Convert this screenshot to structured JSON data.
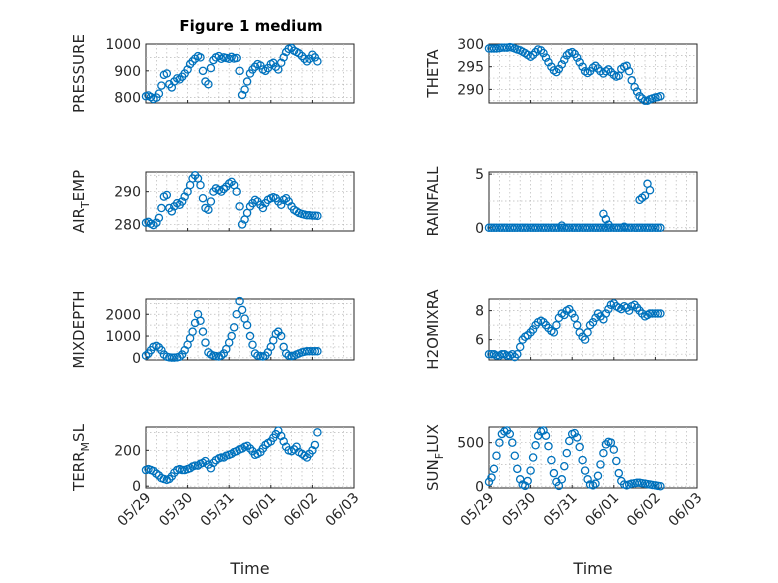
{
  "figure": {
    "title": "Figure 1 medium"
  },
  "chart_data": [
    {
      "type": "scatter",
      "title": "Figure 1 medium",
      "ylabel": "PRESSURE",
      "xlim": [
        0,
        5
      ],
      "ylim": [
        780,
        1000
      ],
      "yticks": [
        800,
        900,
        1000
      ],
      "xticks": [
        0,
        1,
        2,
        3,
        4,
        5
      ],
      "xticklabels": [
        "05/29",
        "05/30",
        "05/31",
        "06/01",
        "06/02",
        "06/03"
      ],
      "show_xticklabels": false,
      "grid": true,
      "color": "#0072bd",
      "x": [
        0.0,
        0.06,
        0.12,
        0.18,
        0.25,
        0.31,
        0.37,
        0.43,
        0.5,
        0.56,
        0.62,
        0.68,
        0.75,
        0.81,
        0.87,
        0.93,
        1.0,
        1.06,
        1.12,
        1.18,
        1.25,
        1.31,
        1.37,
        1.43,
        1.5,
        1.56,
        1.62,
        1.68,
        1.75,
        1.81,
        1.87,
        1.93,
        2.0,
        2.06,
        2.12,
        2.18,
        2.25,
        2.31,
        2.37,
        2.43,
        2.5,
        2.56,
        2.62,
        2.68,
        2.75,
        2.81,
        2.87,
        2.93,
        3.0,
        3.06,
        3.12,
        3.18,
        3.25,
        3.31,
        3.37,
        3.43,
        3.5,
        3.56,
        3.62,
        3.68,
        3.75,
        3.81,
        3.87,
        3.93,
        4.0,
        4.06,
        4.12
      ],
      "y": [
        805,
        808,
        802,
        795,
        800,
        815,
        845,
        885,
        890,
        850,
        838,
        860,
        872,
        868,
        878,
        890,
        905,
        925,
        935,
        945,
        955,
        950,
        900,
        860,
        850,
        910,
        940,
        950,
        955,
        945,
        950,
        948,
        945,
        952,
        946,
        948,
        900,
        810,
        830,
        860,
        890,
        905,
        915,
        925,
        920,
        905,
        900,
        910,
        925,
        930,
        915,
        905,
        930,
        950,
        970,
        982,
        985,
        975,
        970,
        965,
        955,
        945,
        935,
        945,
        960,
        950,
        935
      ]
    },
    {
      "type": "scatter",
      "ylabel": "THETA",
      "xlim": [
        0,
        5
      ],
      "ylim": [
        287,
        300
      ],
      "yticks": [
        290,
        295,
        300
      ],
      "xticks": [
        0,
        1,
        2,
        3,
        4,
        5
      ],
      "xticklabels": [
        "05/29",
        "05/30",
        "05/31",
        "06/01",
        "06/02",
        "06/03"
      ],
      "show_xticklabels": false,
      "grid": true,
      "color": "#0072bd",
      "x": [
        0.0,
        0.06,
        0.12,
        0.18,
        0.25,
        0.31,
        0.37,
        0.43,
        0.5,
        0.56,
        0.62,
        0.68,
        0.75,
        0.81,
        0.87,
        0.93,
        1.0,
        1.06,
        1.12,
        1.18,
        1.25,
        1.31,
        1.37,
        1.43,
        1.5,
        1.56,
        1.62,
        1.68,
        1.75,
        1.81,
        1.87,
        1.93,
        2.0,
        2.06,
        2.12,
        2.18,
        2.25,
        2.31,
        2.37,
        2.43,
        2.5,
        2.56,
        2.62,
        2.68,
        2.75,
        2.81,
        2.87,
        2.93,
        3.0,
        3.06,
        3.12,
        3.18,
        3.25,
        3.31,
        3.37,
        3.43,
        3.5,
        3.56,
        3.62,
        3.68,
        3.75,
        3.81,
        3.87,
        3.93,
        4.0,
        4.06,
        4.12
      ],
      "y": [
        299.0,
        299.0,
        299.0,
        299.0,
        299.1,
        299.2,
        299.2,
        299.2,
        299.3,
        299.2,
        299.0,
        298.8,
        298.6,
        298.3,
        298.0,
        297.6,
        297.2,
        297.6,
        298.2,
        298.8,
        298.6,
        298.0,
        297.0,
        296.0,
        295.0,
        294.2,
        293.8,
        294.5,
        295.5,
        296.5,
        297.5,
        298.0,
        298.2,
        297.8,
        297.0,
        296.0,
        295.0,
        294.0,
        293.6,
        294.0,
        294.8,
        295.2,
        294.6,
        294.0,
        293.5,
        294.0,
        294.4,
        293.8,
        293.2,
        292.8,
        293.0,
        294.5,
        295.0,
        295.2,
        294.0,
        292.0,
        290.5,
        289.5,
        288.5,
        288.0,
        287.5,
        287.5,
        287.8,
        288.0,
        288.2,
        288.3,
        288.5
      ]
    },
    {
      "type": "scatter",
      "ylabel": "AIR_TEMP",
      "xlim": [
        0,
        5
      ],
      "ylim": [
        278,
        296
      ],
      "yticks": [
        280,
        290
      ],
      "xticks": [
        0,
        1,
        2,
        3,
        4,
        5
      ],
      "xticklabels": [
        "05/29",
        "05/30",
        "05/31",
        "06/01",
        "06/02",
        "06/03"
      ],
      "show_xticklabels": false,
      "grid": true,
      "color": "#0072bd",
      "x": [
        0.0,
        0.06,
        0.12,
        0.18,
        0.25,
        0.31,
        0.37,
        0.43,
        0.5,
        0.56,
        0.62,
        0.68,
        0.75,
        0.81,
        0.87,
        0.93,
        1.0,
        1.06,
        1.12,
        1.18,
        1.25,
        1.31,
        1.37,
        1.43,
        1.5,
        1.56,
        1.62,
        1.68,
        1.75,
        1.81,
        1.87,
        1.93,
        2.0,
        2.06,
        2.12,
        2.18,
        2.25,
        2.31,
        2.37,
        2.43,
        2.5,
        2.56,
        2.62,
        2.68,
        2.75,
        2.81,
        2.87,
        2.93,
        3.0,
        3.06,
        3.12,
        3.18,
        3.25,
        3.31,
        3.37,
        3.43,
        3.5,
        3.56,
        3.62,
        3.68,
        3.75,
        3.81,
        3.87,
        3.93,
        4.0,
        4.06,
        4.12
      ],
      "y": [
        280.5,
        280.8,
        280.2,
        279.8,
        280.5,
        282.0,
        285.0,
        288.5,
        289.0,
        285.0,
        284.0,
        285.5,
        286.5,
        286.0,
        287.0,
        288.5,
        290.0,
        292.0,
        294.0,
        295.0,
        294.0,
        292.0,
        288.0,
        285.0,
        284.5,
        287.0,
        290.0,
        291.0,
        290.5,
        290.0,
        290.8,
        291.5,
        292.5,
        293.0,
        292.0,
        290.0,
        285.5,
        280.0,
        281.5,
        283.5,
        285.5,
        286.5,
        287.5,
        287.0,
        286.0,
        285.0,
        286.5,
        287.5,
        288.0,
        288.3,
        288.0,
        287.0,
        286.0,
        287.5,
        288.0,
        287.0,
        285.5,
        284.5,
        284.0,
        283.5,
        283.2,
        283.0,
        282.8,
        282.8,
        282.7,
        282.7,
        282.6
      ]
    },
    {
      "type": "scatter",
      "ylabel": "RAINFALL",
      "xlim": [
        0,
        5
      ],
      "ylim": [
        -0.3,
        5.2
      ],
      "yticks": [
        0,
        5
      ],
      "xticks": [
        0,
        1,
        2,
        3,
        4,
        5
      ],
      "xticklabels": [
        "05/29",
        "05/30",
        "05/31",
        "06/01",
        "06/02",
        "06/03"
      ],
      "show_xticklabels": false,
      "grid": true,
      "color": "#0072bd",
      "x": [
        0.0,
        0.06,
        0.12,
        0.18,
        0.25,
        0.31,
        0.37,
        0.43,
        0.5,
        0.56,
        0.62,
        0.68,
        0.75,
        0.81,
        0.87,
        0.93,
        1.0,
        1.06,
        1.12,
        1.18,
        1.25,
        1.31,
        1.37,
        1.43,
        1.5,
        1.56,
        1.62,
        1.68,
        1.75,
        1.81,
        1.87,
        1.93,
        2.0,
        2.06,
        2.12,
        2.18,
        2.25,
        2.31,
        2.37,
        2.43,
        2.5,
        2.56,
        2.62,
        2.68,
        2.75,
        2.81,
        2.87,
        2.93,
        3.0,
        3.06,
        3.12,
        3.18,
        3.25,
        3.31,
        3.37,
        3.43,
        3.5,
        3.56,
        3.62,
        3.68,
        3.75,
        3.81,
        3.87,
        3.93,
        4.0,
        4.06,
        4.12
      ],
      "y": [
        0,
        0,
        0,
        0,
        0,
        0,
        0,
        0,
        0,
        0,
        0,
        0,
        0,
        0,
        0,
        0,
        0,
        0,
        0,
        0,
        0,
        0,
        0,
        0,
        0,
        0,
        0,
        0,
        0,
        0,
        0,
        0,
        0,
        0,
        0,
        0,
        0,
        0,
        0,
        0,
        0,
        0,
        0,
        0,
        0,
        0,
        0,
        0,
        0,
        0,
        0,
        0,
        0,
        0,
        0,
        0,
        0,
        0,
        0,
        0,
        0,
        0,
        0,
        0,
        0,
        0,
        0
      ],
      "x_extra": [
        1.75,
        2.75,
        2.81,
        2.87,
        3.25,
        3.62,
        3.68,
        3.75,
        3.81,
        3.87
      ],
      "y_extra": [
        0.2,
        1.3,
        0.8,
        0.3,
        0.1,
        2.6,
        2.8,
        3.0,
        4.1,
        3.5
      ]
    },
    {
      "type": "scatter",
      "ylabel": "MIXDEPTH",
      "xlim": [
        0,
        5
      ],
      "ylim": [
        -100,
        2700
      ],
      "yticks": [
        0,
        1000,
        2000
      ],
      "xticks": [
        0,
        1,
        2,
        3,
        4,
        5
      ],
      "xticklabels": [
        "05/29",
        "05/30",
        "05/31",
        "06/01",
        "06/02",
        "06/03"
      ],
      "show_xticklabels": false,
      "grid": true,
      "color": "#0072bd",
      "x": [
        0.0,
        0.06,
        0.12,
        0.18,
        0.25,
        0.31,
        0.37,
        0.43,
        0.5,
        0.56,
        0.62,
        0.68,
        0.75,
        0.81,
        0.87,
        0.93,
        1.0,
        1.06,
        1.12,
        1.18,
        1.25,
        1.31,
        1.37,
        1.43,
        1.5,
        1.56,
        1.62,
        1.68,
        1.75,
        1.81,
        1.87,
        1.93,
        2.0,
        2.06,
        2.12,
        2.18,
        2.25,
        2.31,
        2.37,
        2.43,
        2.5,
        2.56,
        2.62,
        2.68,
        2.75,
        2.81,
        2.87,
        2.93,
        3.0,
        3.06,
        3.12,
        3.18,
        3.25,
        3.31,
        3.37,
        3.43,
        3.5,
        3.56,
        3.62,
        3.68,
        3.75,
        3.81,
        3.87,
        3.93,
        4.0,
        4.06,
        4.12
      ],
      "y": [
        100,
        200,
        350,
        500,
        550,
        480,
        350,
        150,
        50,
        20,
        10,
        10,
        20,
        50,
        150,
        350,
        600,
        900,
        1200,
        1600,
        2000,
        1700,
        1200,
        700,
        250,
        150,
        100,
        80,
        60,
        100,
        200,
        400,
        700,
        1000,
        1400,
        2000,
        2600,
        2200,
        1800,
        1500,
        1000,
        600,
        200,
        100,
        80,
        60,
        100,
        250,
        500,
        800,
        1100,
        1200,
        1000,
        500,
        200,
        100,
        80,
        100,
        150,
        200,
        250,
        280,
        300,
        300,
        300,
        300,
        300
      ]
    },
    {
      "type": "scatter",
      "ylabel": "H2OMIXRA",
      "xlim": [
        0,
        5
      ],
      "ylim": [
        4.6,
        8.8
      ],
      "yticks": [
        6,
        8
      ],
      "xticks": [
        0,
        1,
        2,
        3,
        4,
        5
      ],
      "xticklabels": [
        "05/29",
        "05/30",
        "05/31",
        "06/01",
        "06/02",
        "06/03"
      ],
      "show_xticklabels": false,
      "grid": true,
      "color": "#0072bd",
      "x": [
        0.0,
        0.06,
        0.12,
        0.18,
        0.25,
        0.31,
        0.37,
        0.43,
        0.5,
        0.56,
        0.62,
        0.68,
        0.75,
        0.81,
        0.87,
        0.93,
        1.0,
        1.06,
        1.12,
        1.18,
        1.25,
        1.31,
        1.37,
        1.43,
        1.5,
        1.56,
        1.62,
        1.68,
        1.75,
        1.81,
        1.87,
        1.93,
        2.0,
        2.06,
        2.12,
        2.18,
        2.25,
        2.31,
        2.37,
        2.43,
        2.5,
        2.56,
        2.62,
        2.68,
        2.75,
        2.81,
        2.87,
        2.93,
        3.0,
        3.06,
        3.12,
        3.18,
        3.25,
        3.31,
        3.37,
        3.43,
        3.5,
        3.56,
        3.62,
        3.68,
        3.75,
        3.81,
        3.87,
        3.93,
        4.0,
        4.06,
        4.12
      ],
      "y": [
        5.0,
        5.0,
        5.0,
        4.9,
        4.9,
        5.0,
        5.0,
        4.9,
        4.9,
        5.0,
        4.8,
        5.0,
        5.5,
        6.0,
        6.2,
        6.3,
        6.5,
        6.7,
        7.0,
        7.2,
        7.3,
        7.2,
        7.0,
        6.8,
        6.6,
        6.5,
        7.0,
        7.5,
        7.8,
        7.7,
        8.0,
        8.1,
        7.8,
        7.5,
        7.0,
        6.5,
        6.2,
        6.0,
        6.5,
        7.0,
        7.2,
        7.5,
        7.8,
        7.6,
        7.4,
        7.8,
        8.1,
        8.4,
        8.5,
        8.3,
        8.2,
        8.1,
        8.3,
        8.2,
        8.0,
        8.3,
        8.4,
        8.2,
        8.0,
        7.8,
        7.6,
        7.7,
        7.8,
        7.8,
        7.8,
        7.8,
        7.8
      ]
    },
    {
      "type": "scatter",
      "ylabel": "TERR_MSL",
      "xlim": [
        0,
        5
      ],
      "ylim": [
        -10,
        330
      ],
      "yticks": [
        0,
        200
      ],
      "xticks": [
        0,
        1,
        2,
        3,
        4,
        5
      ],
      "xticklabels": [
        "05/29",
        "05/30",
        "05/31",
        "06/01",
        "06/02",
        "06/03"
      ],
      "show_xticklabels": true,
      "xlabel": "Time",
      "grid": true,
      "color": "#0072bd",
      "x": [
        0.0,
        0.06,
        0.12,
        0.18,
        0.25,
        0.31,
        0.37,
        0.43,
        0.5,
        0.56,
        0.62,
        0.68,
        0.75,
        0.81,
        0.87,
        0.93,
        1.0,
        1.06,
        1.12,
        1.18,
        1.25,
        1.31,
        1.37,
        1.43,
        1.5,
        1.56,
        1.62,
        1.68,
        1.75,
        1.81,
        1.87,
        1.93,
        2.0,
        2.06,
        2.12,
        2.18,
        2.25,
        2.31,
        2.37,
        2.43,
        2.5,
        2.56,
        2.62,
        2.68,
        2.75,
        2.81,
        2.87,
        2.93,
        3.0,
        3.06,
        3.12,
        3.18,
        3.25,
        3.31,
        3.37,
        3.43,
        3.5,
        3.56,
        3.62,
        3.68,
        3.75,
        3.81,
        3.87,
        3.93,
        4.0,
        4.06,
        4.12
      ],
      "y": [
        90,
        95,
        90,
        85,
        70,
        60,
        45,
        40,
        35,
        40,
        55,
        75,
        90,
        95,
        90,
        90,
        95,
        100,
        110,
        115,
        115,
        125,
        130,
        140,
        120,
        100,
        130,
        145,
        155,
        160,
        160,
        170,
        175,
        180,
        190,
        195,
        205,
        210,
        220,
        225,
        210,
        195,
        175,
        180,
        190,
        210,
        230,
        240,
        250,
        270,
        290,
        310,
        280,
        250,
        220,
        200,
        195,
        205,
        220,
        190,
        180,
        170,
        160,
        180,
        200,
        230,
        300
      ]
    },
    {
      "type": "scatter",
      "ylabel": "SUN_FLUX",
      "xlim": [
        0,
        5
      ],
      "ylim": [
        -20,
        680
      ],
      "yticks": [
        0,
        500
      ],
      "xticks": [
        0,
        1,
        2,
        3,
        4,
        5
      ],
      "xticklabels": [
        "05/29",
        "05/30",
        "05/31",
        "06/01",
        "06/02",
        "06/03"
      ],
      "show_xticklabels": true,
      "xlabel": "Time",
      "grid": true,
      "color": "#0072bd",
      "x": [
        0.0,
        0.06,
        0.12,
        0.18,
        0.25,
        0.31,
        0.37,
        0.43,
        0.5,
        0.56,
        0.62,
        0.68,
        0.75,
        0.81,
        0.87,
        0.93,
        1.0,
        1.06,
        1.12,
        1.18,
        1.25,
        1.31,
        1.37,
        1.43,
        1.5,
        1.56,
        1.62,
        1.68,
        1.75,
        1.81,
        1.87,
        1.93,
        2.0,
        2.06,
        2.12,
        2.18,
        2.25,
        2.31,
        2.37,
        2.43,
        2.5,
        2.56,
        2.62,
        2.68,
        2.75,
        2.81,
        2.87,
        2.93,
        3.0,
        3.06,
        3.12,
        3.18,
        3.25,
        3.31,
        3.37,
        3.43,
        3.5,
        3.56,
        3.62,
        3.68,
        3.75,
        3.81,
        3.87,
        3.93,
        4.0,
        4.06,
        4.12
      ],
      "y": [
        50,
        100,
        200,
        350,
        500,
        600,
        630,
        640,
        600,
        500,
        350,
        200,
        80,
        20,
        5,
        60,
        180,
        330,
        470,
        580,
        630,
        640,
        580,
        460,
        300,
        150,
        50,
        5,
        80,
        230,
        380,
        520,
        600,
        610,
        560,
        450,
        300,
        180,
        80,
        20,
        10,
        30,
        120,
        250,
        380,
        480,
        510,
        500,
        420,
        290,
        150,
        60,
        20,
        10,
        20,
        30,
        35,
        40,
        40,
        35,
        30,
        25,
        20,
        15,
        10,
        5,
        0
      ]
    }
  ]
}
